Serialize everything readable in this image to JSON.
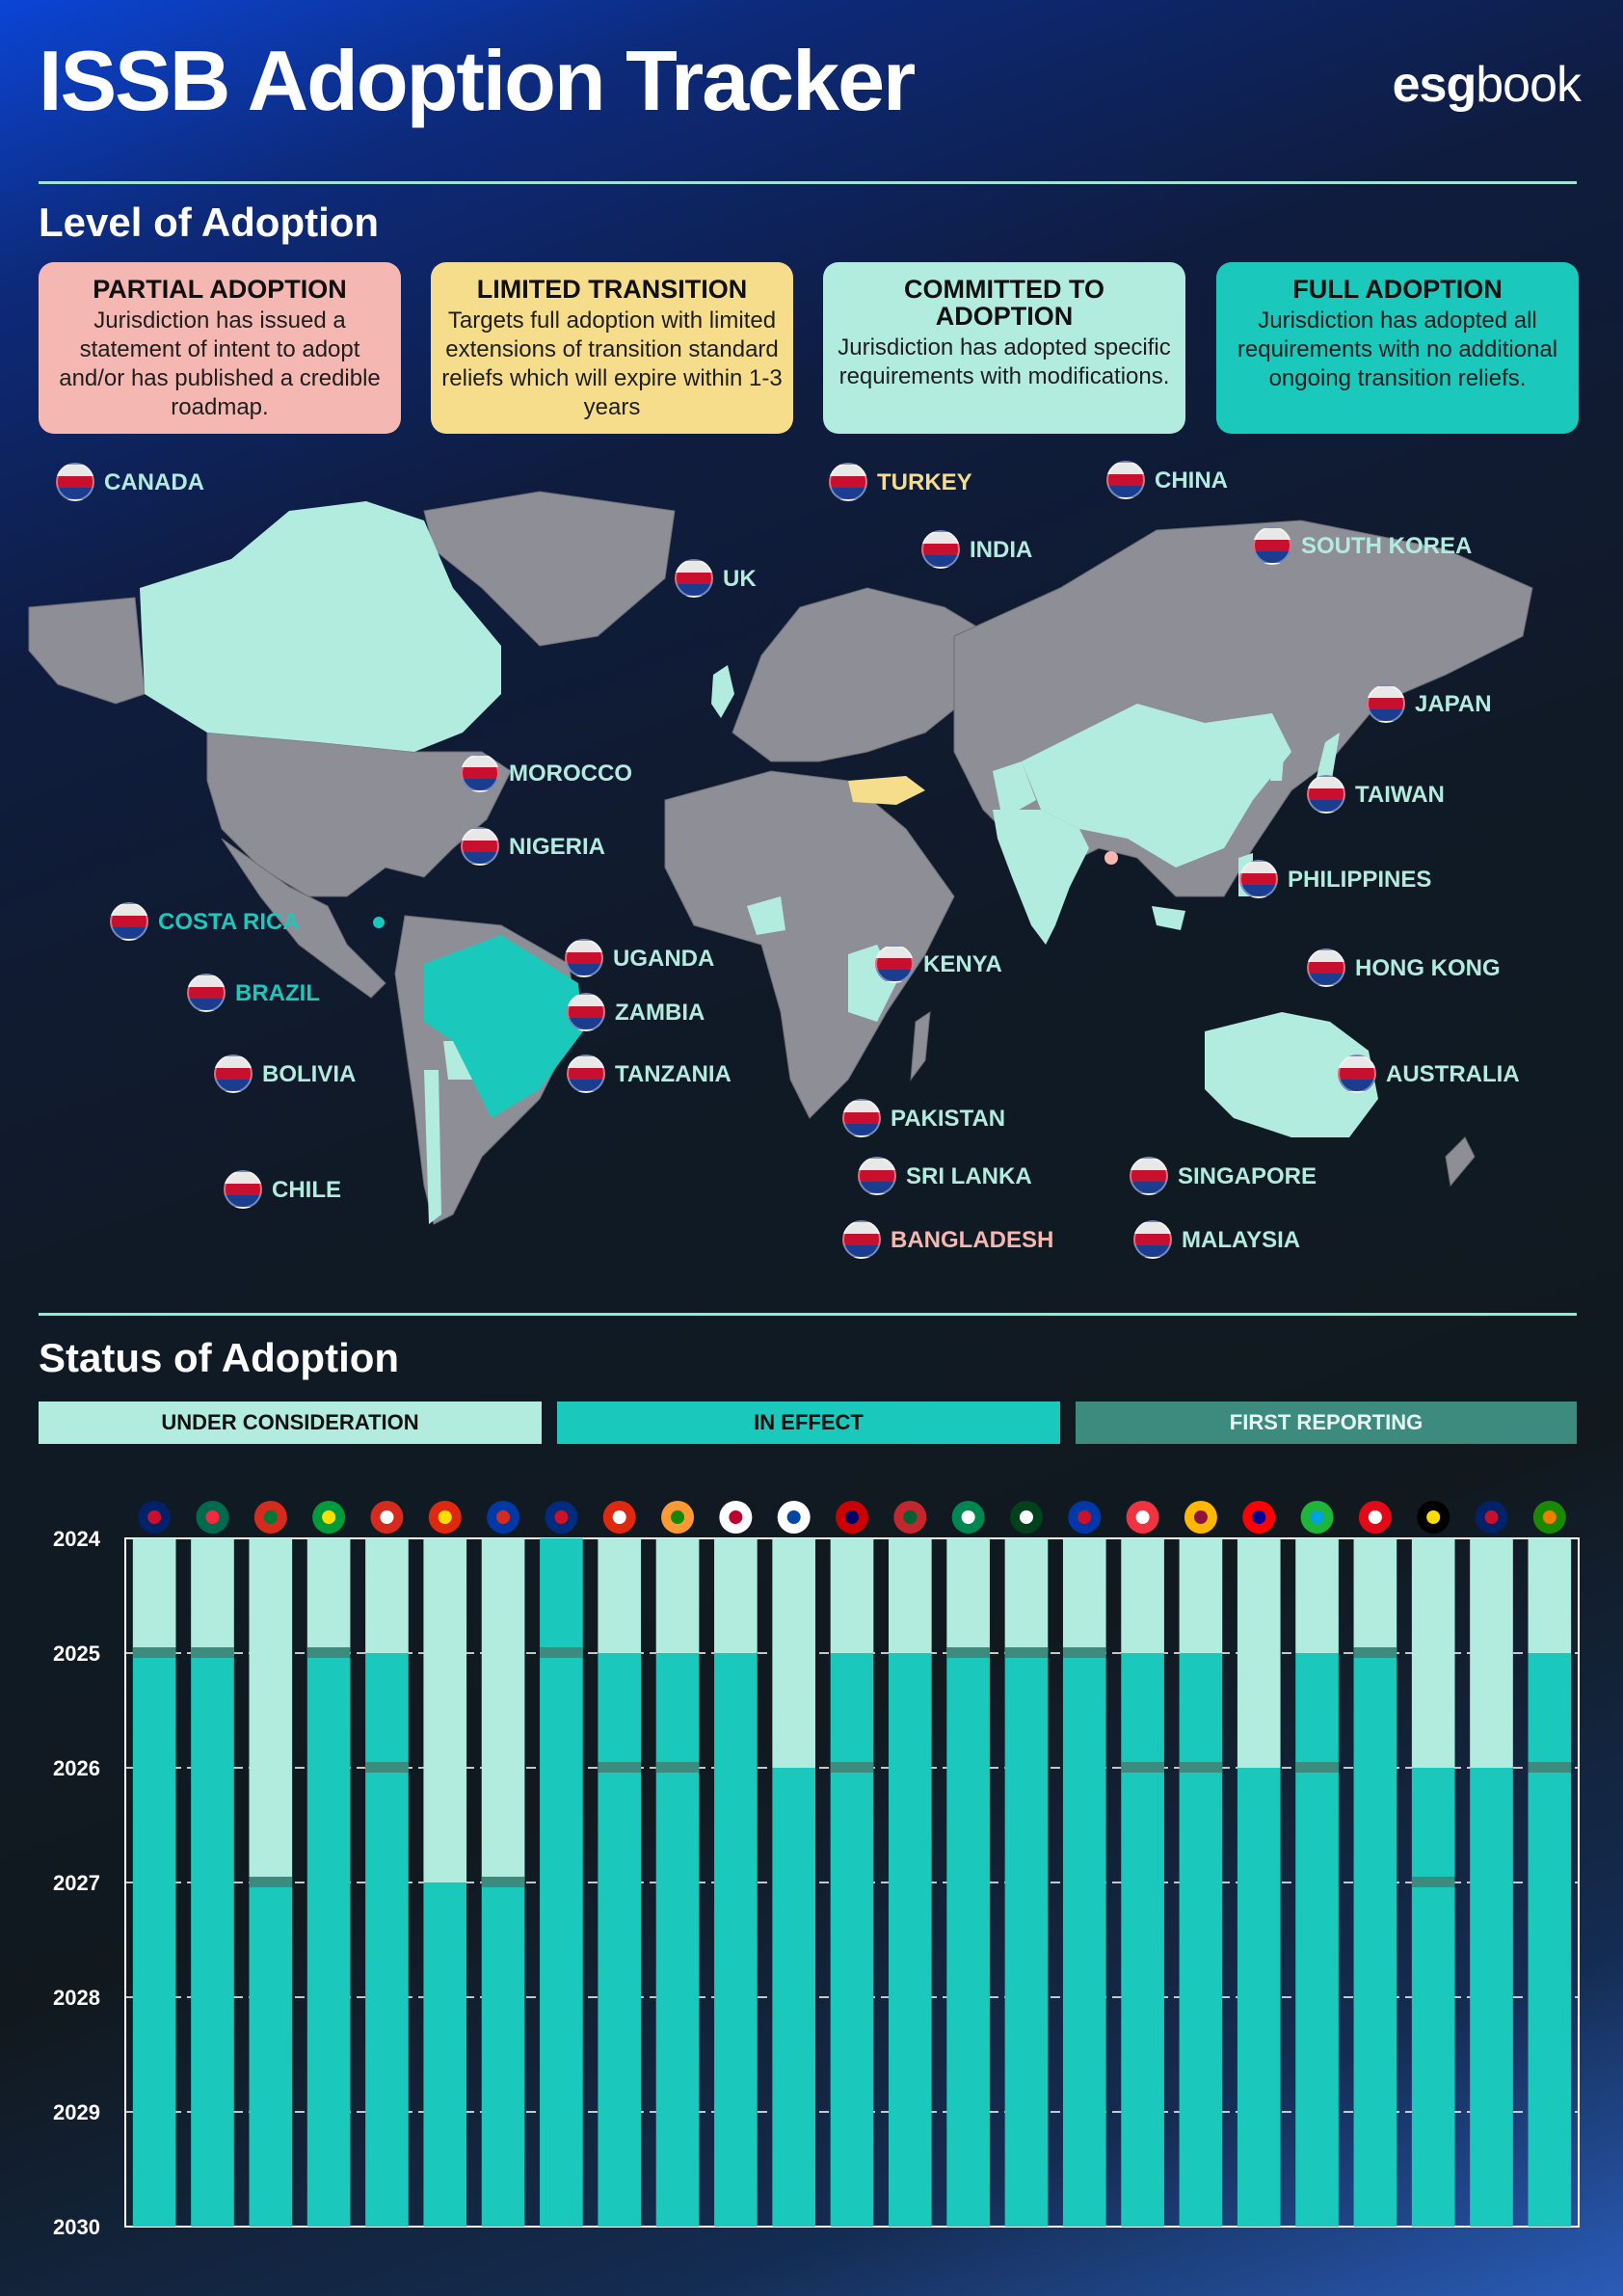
{
  "header": {
    "title": "ISSB Adoption Tracker",
    "logo_bold": "esg",
    "logo_light": "book"
  },
  "level": {
    "section_title": "Level of  Adoption",
    "categories": [
      {
        "title": "PARTIAL ADOPTION",
        "desc": "Jurisdiction has issued a statement of intent to adopt and/or has published a credible roadmap.",
        "color": "#f5b7b1"
      },
      {
        "title": "LIMITED TRANSITION",
        "desc": "Targets full adoption with limited extensions of transition standard reliefs which  will expire within 1-3 years",
        "color": "#f6dd8c"
      },
      {
        "title": "COMMITTED TO ADOPTION",
        "desc": "Jurisdiction has adopted specific requirements with modifications.",
        "color": "#b2ecdf"
      },
      {
        "title": "FULL ADOPTION",
        "desc": "Jurisdiction has adopted all requirements with no additional ongoing transition reliefs.",
        "color": "#1ac9bc"
      }
    ]
  },
  "map": {
    "colors": {
      "land": "#8e8f96",
      "partial": "#f5b7b1",
      "limited": "#f6dd8c",
      "committed": "#b2ecdf",
      "full": "#1ac9bc"
    },
    "countries": [
      {
        "name": "CANADA",
        "level": "committed"
      },
      {
        "name": "TURKEY",
        "level": "limited"
      },
      {
        "name": "CHINA",
        "level": "committed"
      },
      {
        "name": "INDIA",
        "level": "committed"
      },
      {
        "name": "UK",
        "level": "committed"
      },
      {
        "name": "SOUTH KOREA",
        "level": "committed"
      },
      {
        "name": "JAPAN",
        "level": "committed"
      },
      {
        "name": "MOROCCO",
        "level": "committed"
      },
      {
        "name": "TAIWAN",
        "level": "committed"
      },
      {
        "name": "NIGERIA",
        "level": "committed"
      },
      {
        "name": "PHILIPPINES",
        "level": "committed"
      },
      {
        "name": "COSTA RICA",
        "level": "full"
      },
      {
        "name": "HONG KONG",
        "level": "committed"
      },
      {
        "name": "UGANDA",
        "level": "committed"
      },
      {
        "name": "KENYA",
        "level": "committed"
      },
      {
        "name": "BRAZIL",
        "level": "full"
      },
      {
        "name": "ZAMBIA",
        "level": "committed"
      },
      {
        "name": "AUSTRALIA",
        "level": "committed"
      },
      {
        "name": "BOLIVIA",
        "level": "committed"
      },
      {
        "name": "TANZANIA",
        "level": "committed"
      },
      {
        "name": "PAKISTAN",
        "level": "committed"
      },
      {
        "name": "SRI LANKA",
        "level": "committed"
      },
      {
        "name": "SINGAPORE",
        "level": "committed"
      },
      {
        "name": "CHILE",
        "level": "committed"
      },
      {
        "name": "BANGLADESH",
        "level": "partial"
      },
      {
        "name": "MALAYSIA",
        "level": "committed"
      }
    ]
  },
  "status": {
    "section_title": "Status of Adoption",
    "legend": [
      {
        "label": "UNDER CONSIDERATION",
        "color": "#b2ecdf"
      },
      {
        "label": "IN EFFECT",
        "color": "#1ac9bc"
      },
      {
        "label": "FIRST REPORTING",
        "color": "#3d8a7e"
      }
    ]
  },
  "chart_data": {
    "type": "bar",
    "y_labels": [
      "2024",
      "2025",
      "2026",
      "2027",
      "2028",
      "2029",
      "2030"
    ],
    "ylim": [
      2024,
      2030
    ],
    "y_inverted": true,
    "categories": [
      "Australia",
      "Bangladesh",
      "Bolivia",
      "Brazil",
      "Canada",
      "China",
      "Chile",
      "Costa Rica",
      "Hong Kong",
      "India",
      "Japan",
      "South Korea",
      "Malaysia",
      "Morocco",
      "Nigeria",
      "Pakistan",
      "Philippines",
      "Singapore",
      "Sri Lanka",
      "Taiwan",
      "Tanzania",
      "Turkey",
      "Uganda",
      "UK",
      "Zambia"
    ],
    "in_effect_from": [
      2025,
      2025,
      2027,
      2025,
      2025,
      2027,
      2027,
      2024,
      2025,
      2025,
      2025,
      2026,
      2025,
      2025,
      2025,
      2025,
      2025,
      2025,
      2025,
      2026,
      2025,
      2025,
      2026,
      2026,
      2025
    ],
    "first_reporting": [
      2025,
      2025,
      2027,
      2025,
      2026,
      null,
      2027,
      2025,
      2026,
      2026,
      null,
      null,
      2026,
      null,
      2025,
      2025,
      2025,
      2026,
      2026,
      null,
      2026,
      2025,
      2027,
      null,
      2026
    ],
    "end": 2030
  }
}
